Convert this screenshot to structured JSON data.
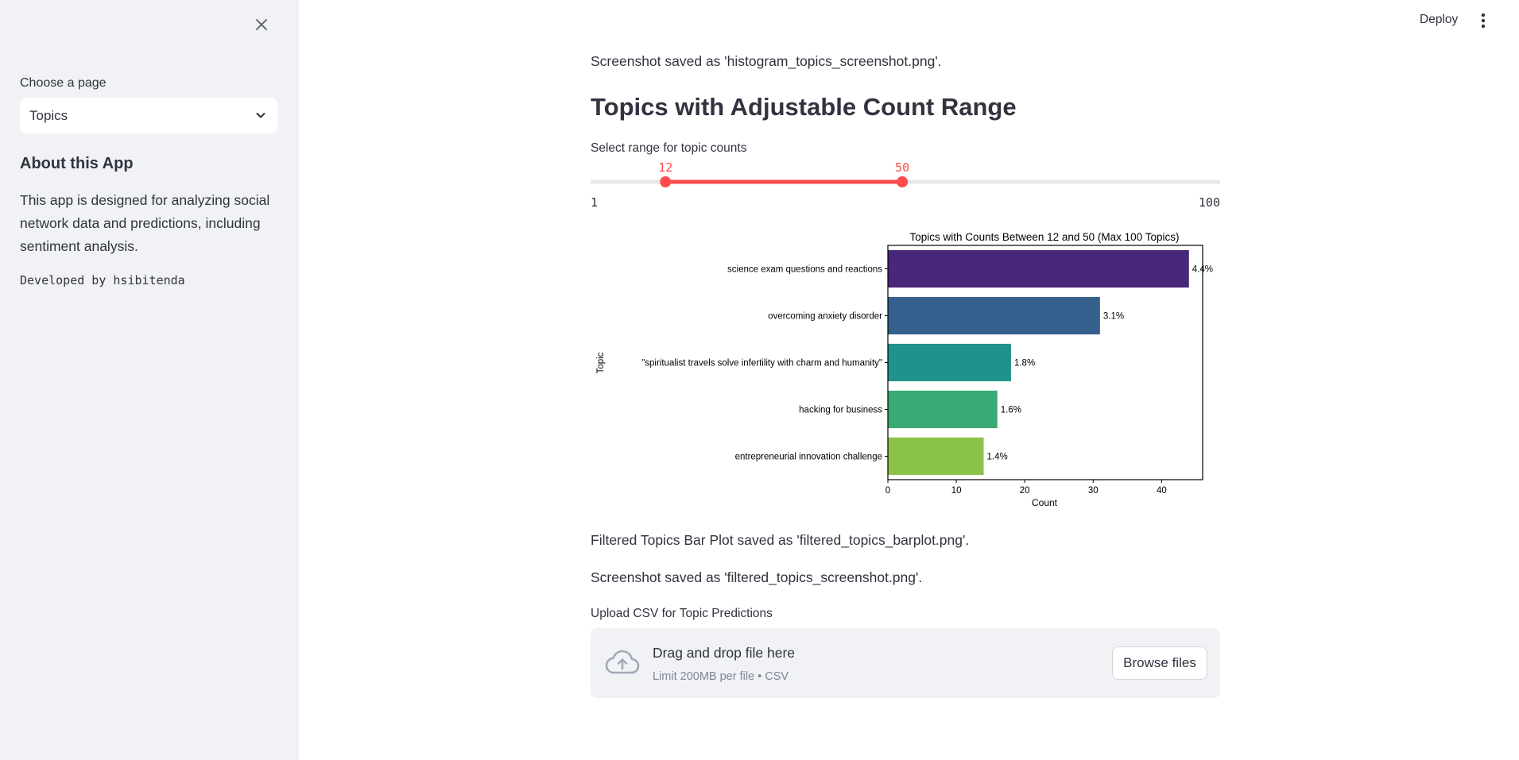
{
  "sidebar": {
    "choose_label": "Choose a page",
    "selected_page": "Topics",
    "about_title": "About this App",
    "about_text": "This app is designed for analyzing social network data and predictions, including sentiment analysis.",
    "developed_by": "Developed by hsibitenda",
    "icons": {
      "close": "close-icon",
      "dropdown": "chevron-down-icon"
    }
  },
  "header": {
    "deploy_label": "Deploy",
    "menu_icon": "more-vertical-icon"
  },
  "main": {
    "screenshot_msg_1": "Screenshot saved as 'histogram_topics_screenshot.png'.",
    "title": "Topics with Adjustable Count Range",
    "slider": {
      "label": "Select range for topic counts",
      "min": 1,
      "max": 100,
      "min_label": "1",
      "max_label": "100",
      "low": 12,
      "high": 50,
      "low_label": "12",
      "high_label": "50",
      "accent_color": "#ff4b4b",
      "track_color": "#e6e8ec"
    },
    "barplot_msg": "Filtered Topics Bar Plot saved as 'filtered_topics_barplot.png'.",
    "screenshot_msg_2": "Screenshot saved as 'filtered_topics_screenshot.png'.",
    "upload": {
      "label": "Upload CSV for Topic Predictions",
      "drop_text": "Drag and drop file here",
      "limit_text": "Limit 200MB per file • CSV",
      "browse_label": "Browse files",
      "icon": "cloud-upload-icon"
    }
  },
  "chart_data": {
    "type": "bar",
    "orientation": "horizontal",
    "title": "Topics with Counts Between 12 and 50 (Max 100 Topics)",
    "xlabel": "Count",
    "ylabel": "Topic",
    "xlim": [
      0,
      46
    ],
    "xticks": [
      0,
      10,
      20,
      30,
      40
    ],
    "categories": [
      "science exam questions and reactions",
      "overcoming anxiety disorder",
      "\"spiritualist travels solve infertility with charm and humanity\"",
      "hacking for business",
      "entrepreneurial innovation challenge"
    ],
    "values": [
      44,
      31,
      18,
      16,
      14
    ],
    "data_labels": [
      "4.4%",
      "3.1%",
      "1.8%",
      "1.6%",
      "1.4%"
    ],
    "colors": [
      "#482878",
      "#35608d",
      "#21918c",
      "#3aaa74",
      "#8bc34a"
    ],
    "grid": false
  }
}
